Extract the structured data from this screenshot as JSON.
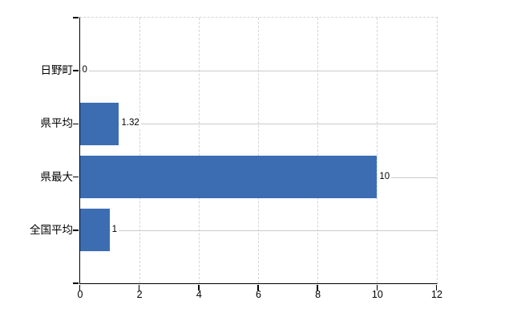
{
  "chart_data": {
    "type": "bar",
    "orientation": "horizontal",
    "title": "",
    "xlabel": "",
    "ylabel": "",
    "categories": [
      "日野町",
      "県平均",
      "県最大",
      "全国平均"
    ],
    "values": [
      0,
      1.32,
      10,
      1
    ],
    "value_labels": [
      "0",
      "1.32",
      "10",
      "1"
    ],
    "xlim": [
      0,
      12
    ],
    "x_ticks": [
      0,
      2,
      4,
      6,
      8,
      10,
      12
    ],
    "x_tick_labels": [
      "0",
      "2",
      "4",
      "6",
      "8",
      "10",
      "12"
    ],
    "grid": true,
    "legend": false,
    "plot_border": "dashed-top-right",
    "colors": {
      "bar": "#3c6db3",
      "grid_vertical": "#d4d4d4",
      "grid_horizontal": "#cccccc",
      "axis": "#000000",
      "text": "#000000",
      "background": "#ffffff"
    }
  }
}
